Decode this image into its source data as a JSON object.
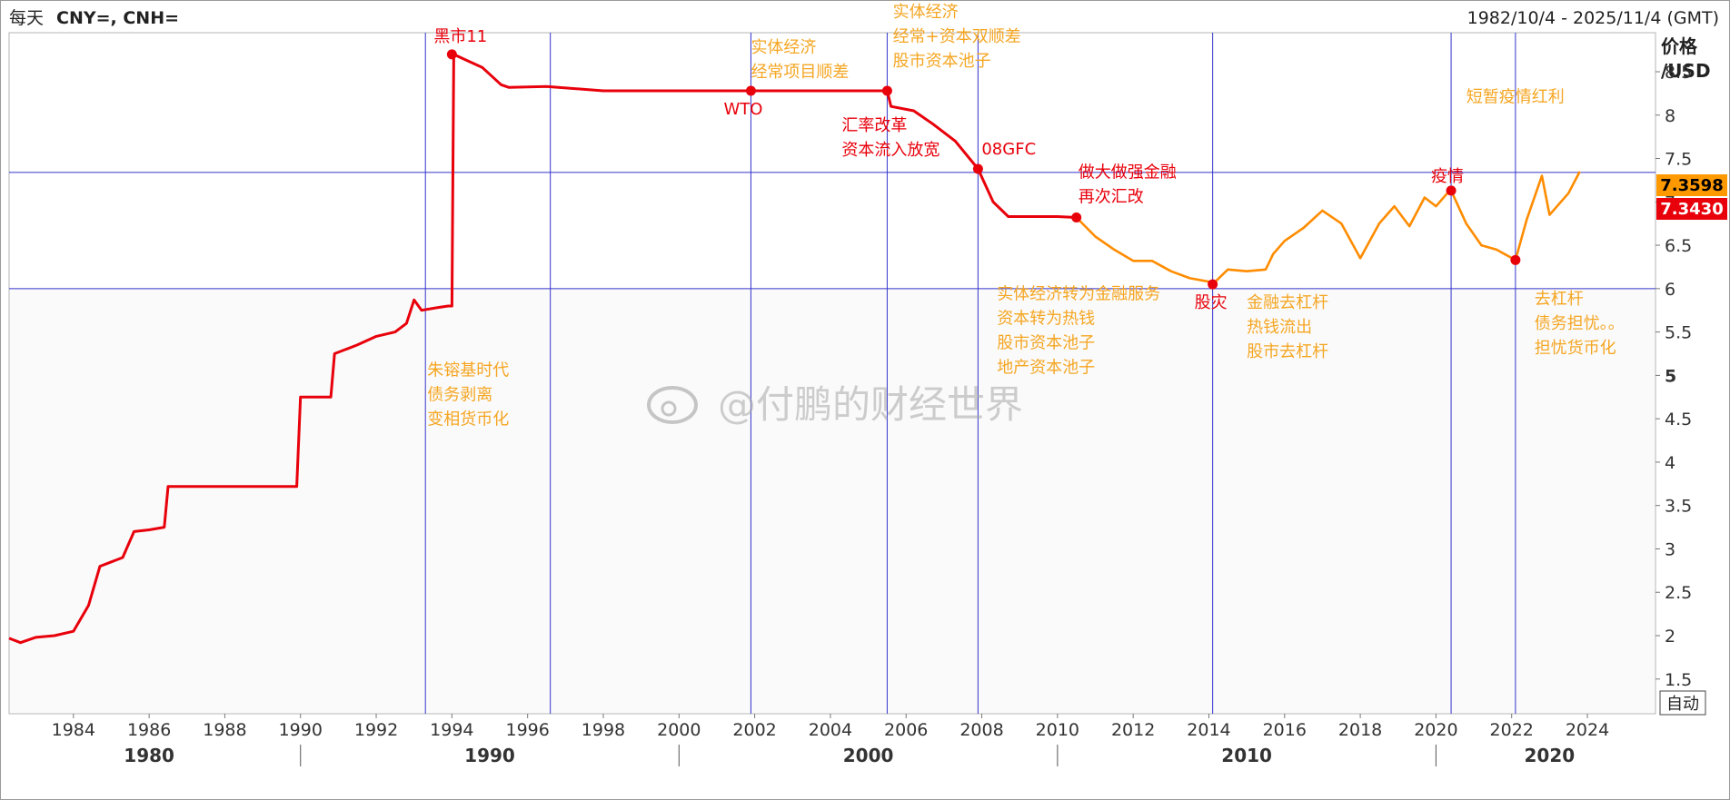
{
  "header": {
    "left_prefix": "每天",
    "left_symbols": "CNY=, CNH=",
    "date_range": "1982/10/4 - 2025/11/4 (GMT)"
  },
  "y_axis": {
    "unit_line1": "价格",
    "unit_line2": "/USD"
  },
  "price_badges": {
    "cnh": {
      "label": "7.3598",
      "color": "#ff9900"
    },
    "cny": {
      "label": "7.3430",
      "color": "#e8000b"
    }
  },
  "auto_button_label": "自动",
  "watermark": "@付鹏的财经世界",
  "colors": {
    "cny": "#e8000b",
    "cnh": "#ff8c00",
    "vline": "#3333cc",
    "annotation": "#f5a623",
    "annotation_red": "#e8000b"
  },
  "chart_data": {
    "type": "line",
    "xlim": [
      1982.3,
      2025.8
    ],
    "ylim": [
      1.1,
      8.95
    ],
    "y_ticks": [
      1.5,
      2,
      2.5,
      3,
      3.5,
      4,
      4.5,
      5,
      5.5,
      6,
      6.5,
      7,
      7.5,
      8,
      8.5
    ],
    "y_tick_labels": [
      "1.5",
      "2",
      "2.5",
      "3",
      "3.5",
      "4",
      "4.5",
      "5",
      "5.5",
      "6",
      "6.5",
      "7",
      "7.5",
      "8",
      "8.5"
    ],
    "x_ticks": [
      1984,
      1986,
      1988,
      1990,
      1992,
      1994,
      1996,
      1998,
      2000,
      2002,
      2004,
      2006,
      2008,
      2010,
      2012,
      2014,
      2016,
      2018,
      2020,
      2022,
      2024
    ],
    "x_tick_labels": [
      "1984",
      "1986",
      "1988",
      "1990",
      "1992",
      "1994",
      "1996",
      "1998",
      "2000",
      "2002",
      "2004",
      "2006",
      "2008",
      "2010",
      "2012",
      "2014",
      "2016",
      "2018",
      "2020",
      "2022",
      "2024"
    ],
    "decades": [
      {
        "label": "1980",
        "x": 1986.0
      },
      {
        "label": "1990",
        "x": 1995.0
      },
      {
        "label": "2000",
        "x": 2005.0
      },
      {
        "label": "2010",
        "x": 2015.0
      },
      {
        "label": "2020",
        "x": 2023.0
      }
    ],
    "decade_dividers": [
      1990.0,
      2000.0,
      2010.0,
      2020.0
    ],
    "vertical_lines": [
      1993.3,
      1996.6,
      2001.9,
      2005.5,
      2007.9,
      2014.1,
      2020.4,
      2022.1
    ],
    "horizontal_lines": [
      7.34,
      6.0
    ],
    "series": [
      {
        "name": "CNY=",
        "color": "#e8000b",
        "x": [
          1982.3,
          1982.6,
          1983.0,
          1983.5,
          1984.0,
          1984.4,
          1984.7,
          1985.0,
          1985.3,
          1985.6,
          1986.0,
          1986.4,
          1986.5,
          1987.0,
          1988.0,
          1989.0,
          1989.9,
          1990.0,
          1990.8,
          1990.9,
          1991.5,
          1992.0,
          1992.5,
          1992.8,
          1993.0,
          1993.2,
          1993.6,
          1993.9,
          1994.0,
          1994.05,
          1994.3,
          1994.8,
          1995.3,
          1995.5,
          1996.5,
          1998.0,
          2000.0,
          2002.0,
          2004.0,
          2005.5,
          2005.6,
          2006.2,
          2006.7,
          2007.3,
          2007.9,
          2008.3,
          2008.7,
          2009.5,
          2010.0,
          2010.5
        ],
        "y": [
          1.97,
          1.92,
          1.98,
          2.0,
          2.05,
          2.35,
          2.8,
          2.85,
          2.9,
          3.2,
          3.22,
          3.25,
          3.72,
          3.72,
          3.72,
          3.72,
          3.72,
          4.75,
          4.75,
          5.25,
          5.35,
          5.45,
          5.5,
          5.6,
          5.87,
          5.75,
          5.78,
          5.8,
          5.8,
          8.7,
          8.65,
          8.55,
          8.35,
          8.32,
          8.33,
          8.28,
          8.28,
          8.28,
          8.28,
          8.28,
          8.1,
          8.05,
          7.9,
          7.7,
          7.38,
          7.0,
          6.83,
          6.83,
          6.83,
          6.82
        ]
      },
      {
        "name": "CNH=",
        "color": "#ff8c00",
        "x": [
          2010.5,
          2011.0,
          2011.5,
          2012.0,
          2012.5,
          2013.0,
          2013.5,
          2014.0,
          2014.1,
          2014.5,
          2015.0,
          2015.5,
          2015.7,
          2016.0,
          2016.5,
          2017.0,
          2017.5,
          2018.0,
          2018.5,
          2018.9,
          2019.3,
          2019.7,
          2020.0,
          2020.3,
          2020.4,
          2020.8,
          2021.2,
          2021.6,
          2022.1,
          2022.4,
          2022.8,
          2023.0,
          2023.5,
          2023.8
        ],
        "y": [
          6.82,
          6.6,
          6.45,
          6.32,
          6.32,
          6.2,
          6.12,
          6.08,
          6.05,
          6.22,
          6.2,
          6.22,
          6.4,
          6.55,
          6.7,
          6.9,
          6.75,
          6.35,
          6.75,
          6.95,
          6.72,
          7.05,
          6.95,
          7.1,
          7.13,
          6.75,
          6.5,
          6.45,
          6.33,
          6.8,
          7.3,
          6.85,
          7.1,
          7.35
        ]
      }
    ],
    "events": [
      {
        "label": "黑市11",
        "x": 1994.0,
        "y": 8.7
      },
      {
        "label": "WTO",
        "x": 2001.9,
        "y": 8.28
      },
      {
        "label": "08GFC",
        "x": 2007.9,
        "y": 7.38
      },
      {
        "label": "股灾",
        "x": 2014.1,
        "y": 6.05
      },
      {
        "label": "疫情",
        "x": 2020.4,
        "y": 7.13
      },
      {
        "label": "",
        "x": 2005.5,
        "y": 8.28
      },
      {
        "label": "",
        "x": 2010.5,
        "y": 6.82
      },
      {
        "label": "",
        "x": 2022.1,
        "y": 6.33
      }
    ],
    "annotations": [
      {
        "lines": [
          "朱镕基时代",
          "债务剥离",
          "变相货币化"
        ],
        "x": 1993.35,
        "y": 5.0,
        "color": "#f5a623"
      },
      {
        "lines": [
          "实体经济",
          "经常项目顺差"
        ],
        "x": 2001.9,
        "y": 8.72,
        "color": "#f5a623"
      },
      {
        "lines": [
          "实体经济",
          "经常+资本双顺差",
          "股市资本池子"
        ],
        "x": 2005.65,
        "y": 9.13,
        "color": "#f5a623"
      },
      {
        "lines": [
          "汇率改革",
          "资本流入放宽"
        ],
        "x": 2004.3,
        "y": 7.82,
        "color": "#e8000b"
      },
      {
        "lines": [
          "做大做强金融",
          "再次汇改"
        ],
        "x": 2010.55,
        "y": 7.28,
        "color": "#e8000b"
      },
      {
        "lines": [
          "实体经济转为金融服务",
          "资本转为热钱",
          "股市资本池子",
          "地产资本池子"
        ],
        "x": 2008.4,
        "y": 5.88,
        "color": "#f5a623"
      },
      {
        "lines": [
          "金融去杠杆",
          "热钱流出",
          "股市去杠杆"
        ],
        "x": 2015.0,
        "y": 5.78,
        "color": "#f5a623"
      },
      {
        "lines": [
          "短暂疫情红利"
        ],
        "x": 2020.8,
        "y": 8.15,
        "color": "#f5a623"
      },
      {
        "lines": [
          "去杠杆",
          "债务担忧。。",
          "担忧货币化"
        ],
        "x": 2022.6,
        "y": 5.82,
        "color": "#f5a623"
      }
    ]
  }
}
